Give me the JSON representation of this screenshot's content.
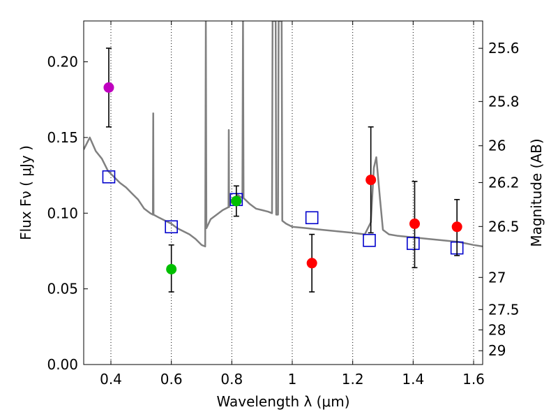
{
  "chart_data": {
    "type": "scatter",
    "xlabel": "Wavelength  λ (μm)",
    "ylabel": "Flux  Fν  ( μJy )",
    "ylabel_right": "Magnitude (AB)",
    "xlim": [
      0.31,
      1.63
    ],
    "ylim": [
      0.0,
      0.227
    ],
    "x_ticks": [
      0.4,
      0.6,
      0.8,
      1.0,
      1.2,
      1.4,
      1.6
    ],
    "x_tick_labels": [
      "0.4",
      "0.6",
      "0.8",
      "1",
      "1.2",
      "1.4",
      "1.6"
    ],
    "y_ticks": [
      0.0,
      0.05,
      0.1,
      0.15,
      0.2
    ],
    "y_tick_labels": [
      "0.00",
      "0.05",
      "0.10",
      "0.15",
      "0.20"
    ],
    "right_ticks": [
      {
        "mag": 25.6,
        "label": "25.6"
      },
      {
        "mag": 25.8,
        "label": "25.8"
      },
      {
        "mag": 26.0,
        "label": "26"
      },
      {
        "mag": 26.2,
        "label": "26.2"
      },
      {
        "mag": 26.5,
        "label": "26.5"
      },
      {
        "mag": 27.0,
        "label": "27"
      },
      {
        "mag": 27.5,
        "label": "27.5"
      },
      {
        "mag": 28.0,
        "label": "28"
      },
      {
        "mag": 29.0,
        "label": "29"
      }
    ],
    "grid": "vertical dotted",
    "observed": [
      {
        "x": 0.393,
        "y": 0.183,
        "yerr_low": 0.157,
        "yerr_high": 0.209,
        "color": "#bf00bf"
      },
      {
        "x": 0.6,
        "y": 0.063,
        "yerr_low": 0.048,
        "yerr_high": 0.079,
        "color": "#00bf00"
      },
      {
        "x": 0.815,
        "y": 0.108,
        "yerr_low": 0.098,
        "yerr_high": 0.118,
        "color": "#00bf00"
      },
      {
        "x": 1.065,
        "y": 0.067,
        "yerr_low": 0.048,
        "yerr_high": 0.086,
        "color": "#ff0000"
      },
      {
        "x": 1.26,
        "y": 0.122,
        "yerr_low": 0.087,
        "yerr_high": 0.157,
        "color": "#ff0000"
      },
      {
        "x": 1.405,
        "y": 0.093,
        "yerr_low": 0.064,
        "yerr_high": 0.121,
        "color": "#ff0000"
      },
      {
        "x": 1.545,
        "y": 0.091,
        "yerr_low": 0.072,
        "yerr_high": 0.109,
        "color": "#ff0000"
      }
    ],
    "model_photometry": [
      {
        "x": 0.393,
        "y": 0.124
      },
      {
        "x": 0.6,
        "y": 0.091
      },
      {
        "x": 0.815,
        "y": 0.109
      },
      {
        "x": 1.065,
        "y": 0.097
      },
      {
        "x": 1.255,
        "y": 0.082
      },
      {
        "x": 1.4,
        "y": 0.08
      },
      {
        "x": 1.545,
        "y": 0.077
      }
    ],
    "model_color": "#0000cc",
    "sed_color": "#808080",
    "sed_curve": [
      [
        0.31,
        0.142
      ],
      [
        0.33,
        0.15
      ],
      [
        0.35,
        0.141
      ],
      [
        0.37,
        0.136
      ],
      [
        0.39,
        0.128
      ],
      [
        0.41,
        0.124
      ],
      [
        0.43,
        0.12
      ],
      [
        0.45,
        0.117
      ],
      [
        0.47,
        0.113
      ],
      [
        0.49,
        0.109
      ],
      [
        0.51,
        0.103
      ],
      [
        0.53,
        0.1
      ],
      [
        0.539,
        0.099
      ],
      [
        0.54,
        0.166
      ],
      [
        0.541,
        0.099
      ],
      [
        0.56,
        0.097
      ],
      [
        0.58,
        0.095
      ],
      [
        0.6,
        0.093
      ],
      [
        0.62,
        0.09
      ],
      [
        0.64,
        0.088
      ],
      [
        0.66,
        0.086
      ],
      [
        0.68,
        0.083
      ],
      [
        0.7,
        0.079
      ],
      [
        0.712,
        0.078
      ],
      [
        0.714,
        0.227
      ],
      [
        0.716,
        0.09
      ],
      [
        0.73,
        0.096
      ],
      [
        0.75,
        0.099
      ],
      [
        0.77,
        0.102
      ],
      [
        0.789,
        0.104
      ],
      [
        0.79,
        0.155
      ],
      [
        0.791,
        0.104
      ],
      [
        0.8,
        0.109
      ],
      [
        0.82,
        0.112
      ],
      [
        0.835,
        0.11
      ],
      [
        0.837,
        0.227
      ],
      [
        0.839,
        0.11
      ],
      [
        0.86,
        0.106
      ],
      [
        0.88,
        0.103
      ],
      [
        0.9,
        0.102
      ],
      [
        0.92,
        0.101
      ],
      [
        0.933,
        0.1
      ],
      [
        0.935,
        0.227
      ],
      [
        0.945,
        0.227
      ],
      [
        0.947,
        0.099
      ],
      [
        0.953,
        0.099
      ],
      [
        0.955,
        0.227
      ],
      [
        0.965,
        0.227
      ],
      [
        0.967,
        0.095
      ],
      [
        0.98,
        0.093
      ],
      [
        1.0,
        0.091
      ],
      [
        1.05,
        0.09
      ],
      [
        1.1,
        0.089
      ],
      [
        1.15,
        0.088
      ],
      [
        1.2,
        0.087
      ],
      [
        1.24,
        0.086
      ],
      [
        1.26,
        0.094
      ],
      [
        1.27,
        0.13
      ],
      [
        1.278,
        0.137
      ],
      [
        1.29,
        0.11
      ],
      [
        1.3,
        0.089
      ],
      [
        1.32,
        0.086
      ],
      [
        1.35,
        0.085
      ],
      [
        1.4,
        0.084
      ],
      [
        1.45,
        0.083
      ],
      [
        1.5,
        0.082
      ],
      [
        1.55,
        0.081
      ],
      [
        1.6,
        0.079
      ],
      [
        1.63,
        0.078
      ]
    ]
  }
}
